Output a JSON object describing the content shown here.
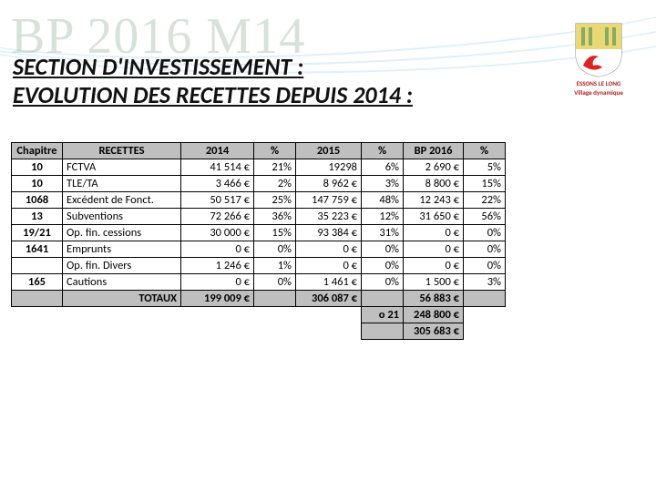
{
  "background_title": "BP 2016 M14",
  "subtitle_line1": "SECTION D'INVESTISSEMENT :",
  "subtitle_line2": "EVOLUTION DES RECETTES DEPUIS 2014 :",
  "logo": {
    "name": "ESSONS LE LONG",
    "tagline": "Village dynamique"
  },
  "table": {
    "columns": [
      "Chapitre",
      "RECETTES",
      "2014",
      "%",
      "2015",
      "%",
      "BP 2016",
      "%"
    ],
    "rows": [
      {
        "chap": "10",
        "rec": "FCTVA",
        "y2014": "41 514 €",
        "p1": "21%",
        "y2015": "19298",
        "p2": "6%",
        "bp": "2 690 €",
        "p3": "5%"
      },
      {
        "chap": "10",
        "rec": "TLE/TA",
        "y2014": "3 466 €",
        "p1": "2%",
        "y2015": "8 962 €",
        "p2": "3%",
        "bp": "8 800 €",
        "p3": "15%"
      },
      {
        "chap": "1068",
        "rec": "Excédent de Fonct.",
        "y2014": "50 517 €",
        "p1": "25%",
        "y2015": "147 759 €",
        "p2": "48%",
        "bp": "12 243 €",
        "p3": "22%"
      },
      {
        "chap": "13",
        "rec": "Subventions",
        "y2014": "72 266 €",
        "p1": "36%",
        "y2015": "35 223 €",
        "p2": "12%",
        "bp": "31 650 €",
        "p3": "56%"
      },
      {
        "chap": "19/21",
        "rec": "Op. fin. cessions",
        "y2014": "30 000 €",
        "p1": "15%",
        "y2015": "93 384 €",
        "p2": "31%",
        "bp": "0 €",
        "p3": "0%"
      },
      {
        "chap": "1641",
        "rec": "Emprunts",
        "y2014": "0 €",
        "p1": "0%",
        "y2015": "0 €",
        "p2": "0%",
        "bp": "0 €",
        "p3": "0%"
      },
      {
        "chap": "",
        "rec": "Op. fin. Divers",
        "y2014": "1 246 €",
        "p1": "1%",
        "y2015": "0 €",
        "p2": "0%",
        "bp": "0 €",
        "p3": "0%"
      },
      {
        "chap": "165",
        "rec": "Cautions",
        "y2014": "0 €",
        "p1": "0%",
        "y2015": "1 461 €",
        "p2": "0%",
        "bp": "1 500 €",
        "p3": "3%"
      }
    ],
    "total_label": "TOTAUX",
    "totaux": {
      "y2014": "199 009 €",
      "y2015": "306 087 €",
      "bp": "56 883 €"
    },
    "extra": [
      {
        "key": "o 21",
        "val": "248 800 €"
      },
      {
        "key": "",
        "val": "305 683 €"
      }
    ]
  },
  "colors": {
    "header_bg": "#bfbfbf",
    "bg_title": "rgba(140,170,150,0.35)",
    "text": "#111111",
    "logo_red": "#b02424",
    "logo_green": "#2b8a2b"
  }
}
